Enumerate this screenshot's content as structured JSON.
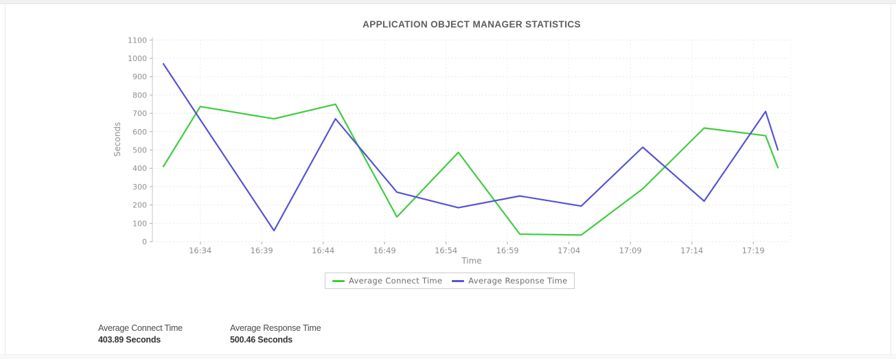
{
  "page": {
    "title": "APPLICATION OBJECT MANAGER STATISTICS"
  },
  "chart_data": {
    "type": "line",
    "title": "APPLICATION OBJECT MANAGER STATISTICS",
    "xlabel": "Time",
    "ylabel": "Seconds",
    "ylim": [
      0,
      1100
    ],
    "ytick_step": 100,
    "y_ticks": [
      "0",
      "100",
      "200",
      "300",
      "400",
      "500",
      "600",
      "700",
      "800",
      "900",
      "1000",
      "1100"
    ],
    "x_ticks": [
      "16:34",
      "16:39",
      "16:44",
      "16:49",
      "16:54",
      "16:59",
      "17:04",
      "17:09",
      "17:14",
      "17:19"
    ],
    "x_tick_minutes": [
      34,
      39,
      44,
      49,
      54,
      59,
      64,
      69,
      74,
      79
    ],
    "grid": true,
    "legend_position": "bottom",
    "x_times": [
      "16:31",
      "16:34",
      "16:40",
      "16:45",
      "16:50",
      "16:55",
      "17:00",
      "17:05",
      "17:10",
      "17:15",
      "17:20",
      "17:21"
    ],
    "x_minutes": [
      31,
      34,
      40,
      45,
      50,
      55,
      60,
      65,
      70,
      75,
      80,
      81
    ],
    "series": [
      {
        "name": "Average Connect Time",
        "color": "#3ecc3e",
        "values": [
          410,
          737,
          670,
          750,
          135,
          487,
          41,
          36,
          288,
          620,
          578,
          403.89
        ]
      },
      {
        "name": "Average Response Time",
        "color": "#5552d6",
        "values": [
          970,
          665,
          60,
          670,
          270,
          185,
          249,
          194,
          515,
          221,
          710,
          500.46
        ]
      }
    ]
  },
  "summary": {
    "items": [
      {
        "label": "Average Connect Time",
        "value": "403.89 Seconds"
      },
      {
        "label": "Average Response Time",
        "value": "500.46 Seconds"
      }
    ]
  },
  "colors": {
    "connect_line": "#3ecc3e",
    "response_line": "#5552d6",
    "grid": "#e7e7e7",
    "axis": "#c6c6c6",
    "tick_text": "#8f8f8f",
    "title_text": "#5c5c5c"
  }
}
